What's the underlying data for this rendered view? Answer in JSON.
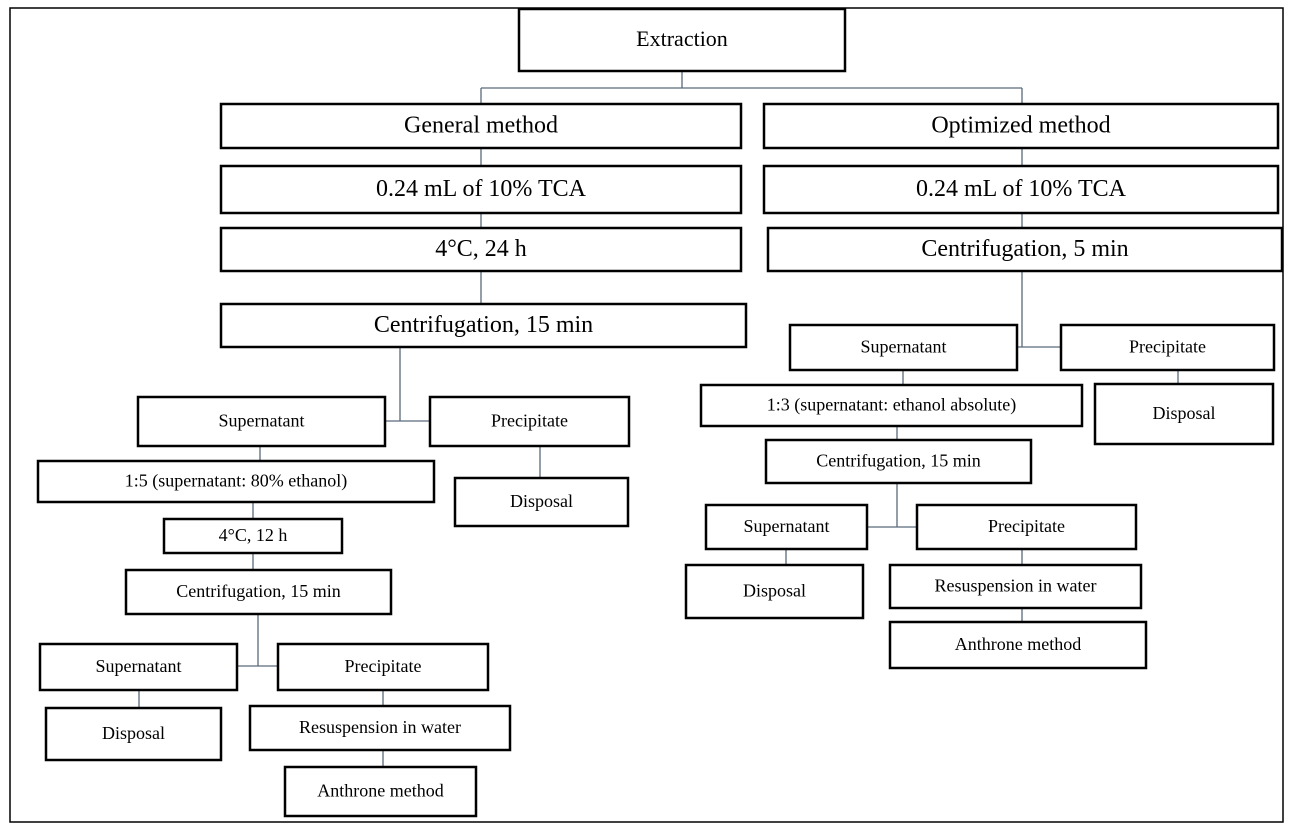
{
  "nodes": [
    {
      "label": "Extraction"
    },
    {
      "label": "General method"
    },
    {
      "label": "Optimized method"
    },
    {
      "label": "0.24 mL of 10% TCA"
    },
    {
      "label": "0.24 mL of 10% TCA"
    },
    {
      "label": "4°C, 24 h"
    },
    {
      "label": "Centrifugation, 5 min"
    },
    {
      "label": "Centrifugation, 15 min"
    },
    {
      "label": "Supernatant"
    },
    {
      "label": "Precipitate"
    },
    {
      "label": "1:3 (supernatant: ethanol absolute)"
    },
    {
      "label": "Disposal"
    },
    {
      "label": "Centrifugation, 15 min"
    },
    {
      "label": "Supernatant"
    },
    {
      "label": "Precipitate"
    },
    {
      "label": "1:5 (supernatant: 80% ethanol)"
    },
    {
      "label": "Disposal"
    },
    {
      "label": "4°C, 12 h"
    },
    {
      "label": "Centrifugation, 15 min"
    },
    {
      "label": "Supernatant"
    },
    {
      "label": "Precipitate"
    },
    {
      "label": "Disposal"
    },
    {
      "label": "Resuspension in water"
    },
    {
      "label": "Anthrone method"
    },
    {
      "label": "Supernatant"
    },
    {
      "label": "Precipitate"
    },
    {
      "label": "Disposal"
    },
    {
      "label": "Resuspension in water"
    },
    {
      "label": "Anthrone method"
    }
  ]
}
